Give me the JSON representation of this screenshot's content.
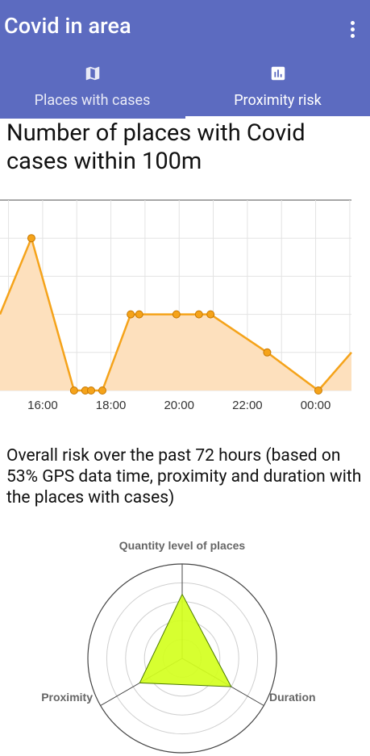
{
  "app": {
    "title": "Covid in area",
    "menu_icon": "more-vert-icon"
  },
  "tabs": [
    {
      "label": "Places with cases",
      "icon": "map-icon",
      "selected": false
    },
    {
      "label": "Proximity risk",
      "icon": "bar-chart-icon",
      "selected": true
    }
  ],
  "proximity_chart": {
    "heading": "Number of places with Covid cases within 100m"
  },
  "overall_risk": {
    "heading": "Overall risk over the past 72 hours (based on 53% GPS data time, proximity and duration with the places with cases)"
  },
  "colors": {
    "appbar": "#5c6bc0",
    "line": "#f5a31a",
    "area_fill": "#fde0bd",
    "radar_fill": "#d4ff1e",
    "radar_stroke": "#4c7a00"
  },
  "chart_data": [
    {
      "type": "area",
      "title": "Number of places with Covid cases within 100m",
      "x_tick_labels": [
        "16:00",
        "18:00",
        "20:00",
        "22:00",
        "00:00"
      ],
      "x_ticks_hours": [
        16,
        18,
        20,
        22,
        24
      ],
      "xlim_hours": [
        14.75,
        25.05
      ],
      "ylim": [
        0,
        5
      ],
      "grid": true,
      "points": [
        {
          "t": 14.75,
          "y": 2
        },
        {
          "t": 15.67,
          "y": 4
        },
        {
          "t": 16.92,
          "y": 0
        },
        {
          "t": 17.25,
          "y": 0
        },
        {
          "t": 17.42,
          "y": 0
        },
        {
          "t": 17.75,
          "y": 0
        },
        {
          "t": 18.58,
          "y": 2
        },
        {
          "t": 18.83,
          "y": 2
        },
        {
          "t": 19.92,
          "y": 2
        },
        {
          "t": 20.58,
          "y": 2
        },
        {
          "t": 20.92,
          "y": 2
        },
        {
          "t": 22.58,
          "y": 1
        },
        {
          "t": 24.08,
          "y": 0
        },
        {
          "t": 25.05,
          "y": 1
        }
      ],
      "marker_indices": [
        1,
        2,
        3,
        4,
        5,
        6,
        7,
        8,
        9,
        10,
        11,
        12
      ]
    },
    {
      "type": "radar",
      "axes": [
        "Quantity level of places",
        "Duration",
        "Proximity"
      ],
      "rmax": 5,
      "rings": 5,
      "values": [
        3.4,
        3.0,
        2.6
      ]
    }
  ]
}
